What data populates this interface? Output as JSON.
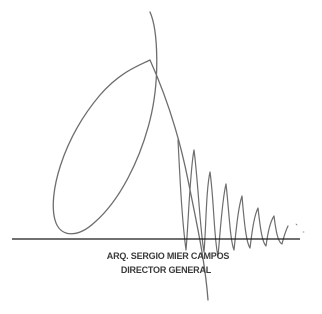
{
  "signature": {
    "name": "ARQ. SERGIO MIER CAMPOS",
    "title": "DIRECTOR GENERAL"
  }
}
